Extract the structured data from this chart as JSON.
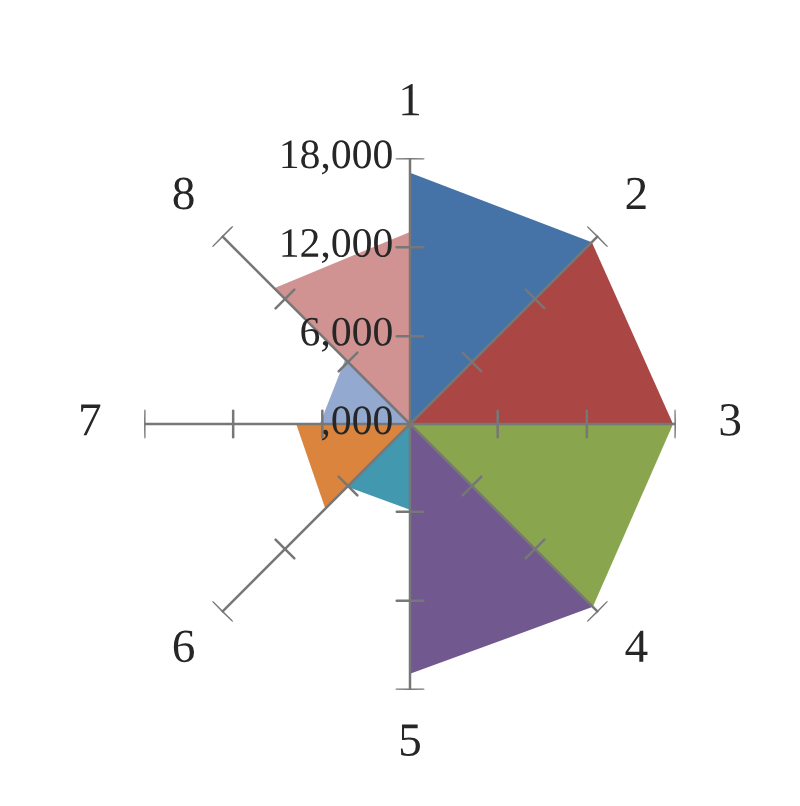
{
  "chart_data": {
    "type": "radar",
    "categories": [
      "1",
      "2",
      "3",
      "4",
      "5",
      "6",
      "7",
      "8"
    ],
    "series": [
      {
        "color": "#4572a7",
        "values": [
          17000,
          17400,
          0,
          0,
          0,
          0,
          0,
          0
        ]
      },
      {
        "color": "#aa4643",
        "values": [
          0,
          17400,
          17800,
          0,
          0,
          0,
          0,
          0
        ]
      },
      {
        "color": "#89a54e",
        "values": [
          0,
          0,
          17800,
          17500,
          0,
          0,
          0,
          0
        ]
      },
      {
        "color": "#71588f",
        "values": [
          0,
          0,
          0,
          17500,
          16900,
          0,
          0,
          0
        ]
      },
      {
        "color": "#4198af",
        "values": [
          0,
          0,
          0,
          0,
          5800,
          6000,
          0,
          0
        ]
      },
      {
        "color": "#db843d",
        "values": [
          0,
          0,
          0,
          0,
          0,
          8100,
          7700,
          0
        ]
      },
      {
        "color": "#93a9cf",
        "values": [
          0,
          0,
          0,
          0,
          0,
          0,
          6100,
          6200
        ]
      },
      {
        "color": "#d19392",
        "values": [
          13000,
          0,
          0,
          0,
          0,
          0,
          0,
          13000
        ]
      }
    ],
    "ylim": [
      0,
      18000
    ],
    "yticks": [
      {
        "value": 0,
        "label": ",000"
      },
      {
        "value": 6000,
        "label": "6,000"
      },
      {
        "value": 12000,
        "label": "12,000"
      },
      {
        "value": 18000,
        "label": "18,000"
      }
    ],
    "grid": "x"
  }
}
